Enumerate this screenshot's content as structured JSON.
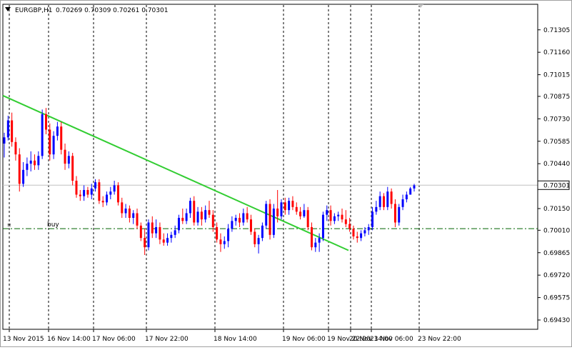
{
  "header": {
    "symbol": "EURGBP,H1",
    "ohlc": "0.70269 0.70309 0.70261 0.70301",
    "menu_icon": "triangle-down-icon"
  },
  "colors": {
    "bull": "#0000ff",
    "bear": "#ff0000",
    "trendline": "#32cd32",
    "order_line": "#006400",
    "grid": "#000000",
    "price_line": "#c0c0c0"
  },
  "chart_data": {
    "type": "candlestick",
    "symbol": "EURGBP",
    "timeframe": "H1",
    "ylim": [
      0.6937,
      0.7147
    ],
    "y_ticks": [
      "0.71305",
      "0.71160",
      "0.71015",
      "0.70875",
      "0.70730",
      "0.70585",
      "0.70440",
      "0.70301",
      "0.70150",
      "0.70010",
      "0.69865",
      "0.69720",
      "0.69575",
      "0.69430"
    ],
    "x_ticks": [
      "13 Nov 2015",
      "16 Nov 14:00",
      "17 Nov 06:00",
      "17 Nov 22:00",
      "18 Nov 14:00",
      "19 Nov 06:00",
      "19 Nov 22:00",
      "20 Nov 14:00",
      "23 Nov 06:00",
      "23 Nov 22:00"
    ],
    "current_price": 0.70301,
    "order_line": {
      "label": "buy",
      "price": 0.7002
    },
    "trendline": {
      "start_price": 0.7088,
      "end_price": 0.6988
    },
    "candles": [
      [
        0.7057,
        0.7064,
        0.7048,
        0.7061
      ],
      [
        0.7061,
        0.7075,
        0.7059,
        0.7072
      ],
      [
        0.7072,
        0.7077,
        0.7055,
        0.7058
      ],
      [
        0.7058,
        0.7061,
        0.7046,
        0.705
      ],
      [
        0.705,
        0.7054,
        0.7026,
        0.7031
      ],
      [
        0.7031,
        0.7045,
        0.7029,
        0.704
      ],
      [
        0.704,
        0.7048,
        0.7036,
        0.7044
      ],
      [
        0.7044,
        0.7052,
        0.7039,
        0.7046
      ],
      [
        0.7046,
        0.705,
        0.704,
        0.7043
      ],
      [
        0.7043,
        0.7052,
        0.704,
        0.7049
      ],
      [
        0.7049,
        0.7079,
        0.7047,
        0.7076
      ],
      [
        0.7076,
        0.708,
        0.7063,
        0.7066
      ],
      [
        0.7066,
        0.707,
        0.7046,
        0.705
      ],
      [
        0.705,
        0.7065,
        0.7047,
        0.7062
      ],
      [
        0.7062,
        0.7071,
        0.7059,
        0.7068
      ],
      [
        0.7068,
        0.7071,
        0.705,
        0.7053
      ],
      [
        0.7053,
        0.7057,
        0.704,
        0.7044
      ],
      [
        0.7044,
        0.7052,
        0.7041,
        0.7049
      ],
      [
        0.7049,
        0.7051,
        0.703,
        0.7033
      ],
      [
        0.7033,
        0.7036,
        0.7022,
        0.7024
      ],
      [
        0.7024,
        0.7027,
        0.702,
        0.7023
      ],
      [
        0.7023,
        0.703,
        0.702,
        0.7027
      ],
      [
        0.7027,
        0.7029,
        0.7022,
        0.7024
      ],
      [
        0.7024,
        0.7031,
        0.7021,
        0.7028
      ],
      [
        0.7028,
        0.7034,
        0.7026,
        0.7032
      ],
      [
        0.7032,
        0.7034,
        0.7018,
        0.702
      ],
      [
        0.702,
        0.7023,
        0.7016,
        0.7019
      ],
      [
        0.7019,
        0.7026,
        0.7017,
        0.7024
      ],
      [
        0.7024,
        0.7029,
        0.7021,
        0.7026
      ],
      [
        0.7026,
        0.7033,
        0.7024,
        0.703
      ],
      [
        0.703,
        0.7032,
        0.7017,
        0.7019
      ],
      [
        0.7019,
        0.7022,
        0.7009,
        0.7012
      ],
      [
        0.7012,
        0.7018,
        0.7009,
        0.7015
      ],
      [
        0.7015,
        0.7017,
        0.7006,
        0.7009
      ],
      [
        0.7009,
        0.7014,
        0.7005,
        0.7012
      ],
      [
        0.7012,
        0.7015,
        0.7002,
        0.7004
      ],
      [
        0.7004,
        0.7006,
        0.6994,
        0.6996
      ],
      [
        0.6996,
        0.7002,
        0.6985,
        0.699
      ],
      [
        0.699,
        0.7008,
        0.6988,
        0.7006
      ],
      [
        0.7006,
        0.701,
        0.6996,
        0.6999
      ],
      [
        0.6999,
        0.7008,
        0.6996,
        0.7003
      ],
      [
        0.7003,
        0.7006,
        0.6992,
        0.6995
      ],
      [
        0.6995,
        0.6999,
        0.6991,
        0.6993
      ],
      [
        0.6993,
        0.6999,
        0.6991,
        0.6996
      ],
      [
        0.6996,
        0.7,
        0.6993,
        0.6998
      ],
      [
        0.6998,
        0.7004,
        0.6996,
        0.7001
      ],
      [
        0.7001,
        0.7011,
        0.6999,
        0.7009
      ],
      [
        0.7009,
        0.7015,
        0.7005,
        0.7007
      ],
      [
        0.7007,
        0.7015,
        0.7005,
        0.7012
      ],
      [
        0.7012,
        0.7022,
        0.7009,
        0.702
      ],
      [
        0.702,
        0.7023,
        0.7004,
        0.7006
      ],
      [
        0.7006,
        0.7016,
        0.7004,
        0.7013
      ],
      [
        0.7013,
        0.7016,
        0.7004,
        0.7008
      ],
      [
        0.7008,
        0.7017,
        0.7006,
        0.7014
      ],
      [
        0.7014,
        0.702,
        0.7009,
        0.7011
      ],
      [
        0.7011,
        0.7014,
        0.7,
        0.7003
      ],
      [
        0.7003,
        0.7006,
        0.6993,
        0.6995
      ],
      [
        0.6995,
        0.6999,
        0.6987,
        0.6992
      ],
      [
        0.6992,
        0.6997,
        0.6989,
        0.6994
      ],
      [
        0.6994,
        0.7005,
        0.699,
        0.7002
      ],
      [
        0.7002,
        0.701,
        0.7,
        0.7007
      ],
      [
        0.7007,
        0.7011,
        0.7004,
        0.7009
      ],
      [
        0.7009,
        0.7012,
        0.7003,
        0.7006
      ],
      [
        0.7006,
        0.7015,
        0.7004,
        0.7012
      ],
      [
        0.7012,
        0.7016,
        0.7006,
        0.7008
      ],
      [
        0.7008,
        0.7011,
        0.6998,
        0.7
      ],
      [
        0.7,
        0.7002,
        0.699,
        0.6992
      ],
      [
        0.6992,
        0.6998,
        0.6986,
        0.6996
      ],
      [
        0.6996,
        0.7006,
        0.6994,
        0.7004
      ],
      [
        0.7004,
        0.702,
        0.7002,
        0.7018
      ],
      [
        0.7018,
        0.7021,
        0.6995,
        0.6998
      ],
      [
        0.6998,
        0.7018,
        0.6996,
        0.7015
      ],
      [
        0.7015,
        0.7027,
        0.7006,
        0.701
      ],
      [
        0.701,
        0.7021,
        0.7008,
        0.7019
      ],
      [
        0.7019,
        0.7022,
        0.7011,
        0.7014
      ],
      [
        0.7014,
        0.7022,
        0.7011,
        0.702
      ],
      [
        0.702,
        0.7023,
        0.7014,
        0.7016
      ],
      [
        0.7016,
        0.7019,
        0.7011,
        0.7013
      ],
      [
        0.7013,
        0.7016,
        0.7008,
        0.701
      ],
      [
        0.701,
        0.7018,
        0.7009,
        0.7014
      ],
      [
        0.7014,
        0.7016,
        0.7001,
        0.7003
      ],
      [
        0.7003,
        0.7006,
        0.6988,
        0.699
      ],
      [
        0.699,
        0.6996,
        0.6987,
        0.6993
      ],
      [
        0.6993,
        0.6999,
        0.6987,
        0.6996
      ],
      [
        0.6996,
        0.7013,
        0.6994,
        0.7011
      ],
      [
        0.7011,
        0.7017,
        0.7007,
        0.7014
      ],
      [
        0.7014,
        0.7017,
        0.7004,
        0.7007
      ],
      [
        0.7007,
        0.7012,
        0.7005,
        0.701
      ],
      [
        0.701,
        0.7013,
        0.7007,
        0.7011
      ],
      [
        0.7011,
        0.7015,
        0.7006,
        0.7008
      ],
      [
        0.7008,
        0.7014,
        0.7003,
        0.7005
      ],
      [
        0.7005,
        0.7009,
        0.7,
        0.7002
      ],
      [
        0.7002,
        0.7004,
        0.6995,
        0.6997
      ],
      [
        0.6997,
        0.7,
        0.6993,
        0.6996
      ],
      [
        0.6996,
        0.7001,
        0.6994,
        0.6999
      ],
      [
        0.6999,
        0.7003,
        0.6997,
        0.7001
      ],
      [
        0.7001,
        0.7005,
        0.6998,
        0.7003
      ],
      [
        0.7003,
        0.7016,
        0.7001,
        0.7013
      ],
      [
        0.7013,
        0.702,
        0.7011,
        0.7016
      ],
      [
        0.7016,
        0.7026,
        0.7014,
        0.7023
      ],
      [
        0.7023,
        0.7025,
        0.7014,
        0.7016
      ],
      [
        0.7016,
        0.7029,
        0.7014,
        0.7026
      ],
      [
        0.7026,
        0.7028,
        0.7015,
        0.7018
      ],
      [
        0.7018,
        0.7021,
        0.7003,
        0.7006
      ],
      [
        0.7006,
        0.7018,
        0.7004,
        0.7016
      ],
      [
        0.7016,
        0.7024,
        0.7014,
        0.7021
      ],
      [
        0.7021,
        0.7026,
        0.7019,
        0.7024
      ],
      [
        0.7024,
        0.7029,
        0.7026,
        0.7028
      ],
      [
        0.7028,
        0.7031,
        0.7026,
        0.703
      ]
    ]
  }
}
